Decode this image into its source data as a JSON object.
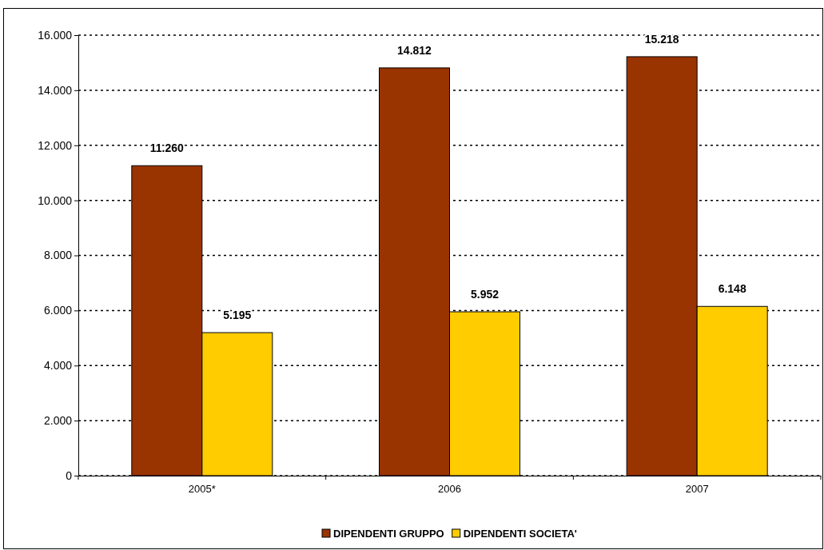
{
  "chart_data": {
    "type": "bar",
    "categories": [
      "2005*",
      "2006",
      "2007"
    ],
    "series": [
      {
        "name": "DIPENDENTI GRUPPO",
        "color": "#993300",
        "values": [
          11260,
          14812,
          15218
        ],
        "value_labels": [
          "11.260",
          "14.812",
          "15.218"
        ]
      },
      {
        "name": "DIPENDENTI SOCIETA'",
        "color": "#ffcc00",
        "values": [
          5195,
          5952,
          6148
        ],
        "value_labels": [
          "5.195",
          "5.952",
          "6.148"
        ]
      }
    ],
    "ylim": [
      0,
      16000
    ],
    "yticks": [
      {
        "value": 0,
        "label": "0"
      },
      {
        "value": 2000,
        "label": "2.000"
      },
      {
        "value": 4000,
        "label": "4.000"
      },
      {
        "value": 6000,
        "label": "6.000"
      },
      {
        "value": 8000,
        "label": "8.000"
      },
      {
        "value": 10000,
        "label": "10.000"
      },
      {
        "value": 12000,
        "label": "12.000"
      },
      {
        "value": 14000,
        "label": "14.000"
      },
      {
        "value": 16000,
        "label": "16.000"
      }
    ],
    "grid": "y",
    "legend": "bottom"
  }
}
